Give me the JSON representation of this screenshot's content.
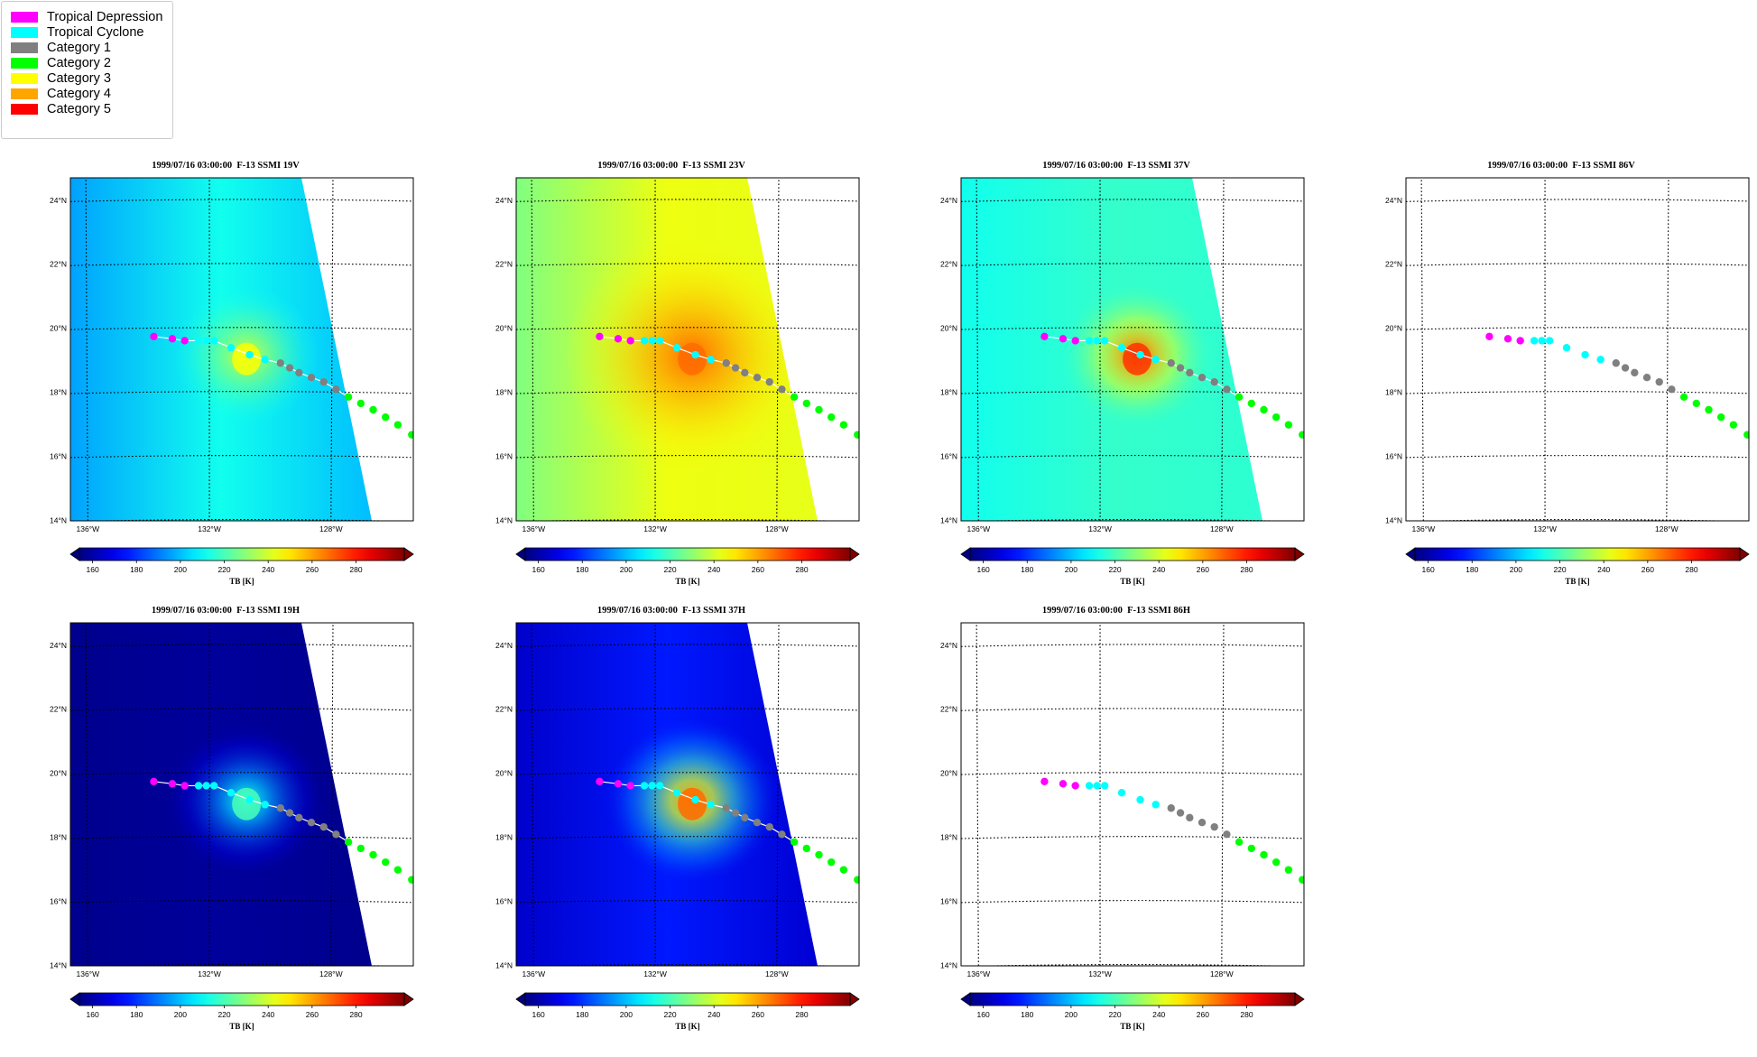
{
  "legend": {
    "items": [
      {
        "label": "Tropical Depression",
        "color": "#ff00ff"
      },
      {
        "label": "Tropical Cyclone",
        "color": "#00ffff"
      },
      {
        "label": "Category 1",
        "color": "#808080"
      },
      {
        "label": "Category 2",
        "color": "#00ff00"
      },
      {
        "label": "Category 3",
        "color": "#ffff00"
      },
      {
        "label": "Category 4",
        "color": "#ffa500"
      },
      {
        "label": "Category 5",
        "color": "#ff0000"
      }
    ]
  },
  "panels": [
    {
      "title": "1999/07/16 03:00:00  F-13 SSMI 19V",
      "bg": 212,
      "edge": 200,
      "west": 196,
      "core": 240,
      "coreR": 0.35,
      "swath": true
    },
    {
      "title": "1999/07/16 03:00:00  F-13 SSMI 23V",
      "bg": 244,
      "edge": 243,
      "west": 228,
      "core": 268,
      "coreR": 0.9,
      "swath": true
    },
    {
      "title": "1999/07/16 03:00:00  F-13 SSMI 37V",
      "bg": 217,
      "edge": 216,
      "west": 212,
      "core": 270,
      "coreR": 0.4,
      "swath": true
    },
    {
      "title": "1999/07/16 03:00:00  F-13 SSMI 86V",
      "swath": false
    },
    {
      "title": "1999/07/16 03:00:00  F-13 SSMI 19H",
      "bg": 158,
      "edge": 156,
      "west": 156,
      "core": 214,
      "coreR": 0.45,
      "swath": true
    },
    {
      "title": "1999/07/16 03:00:00  F-13 SSMI 37H",
      "bg": 176,
      "edge": 166,
      "west": 165,
      "core": 262,
      "coreR": 0.5,
      "swath": true
    },
    {
      "title": "1999/07/16 03:00:00  F-13 SSMI 86H",
      "swath": false
    }
  ],
  "map": {
    "lon_ticks": [
      "136°W",
      "132°W",
      "128°W"
    ],
    "lat_ticks": [
      "14°N",
      "16°N",
      "18°N",
      "20°N",
      "22°N",
      "24°N"
    ],
    "lon_values": [
      -136,
      -132,
      -128
    ],
    "lat_values": [
      14,
      16,
      18,
      20,
      22,
      24
    ],
    "extent": {
      "lon_min": -136.5,
      "lon_max": -125.4,
      "lat_min": 13.98,
      "lat_max": 24.7
    }
  },
  "colorbar": {
    "label": "TB [K]",
    "ticks": [
      "160",
      "180",
      "200",
      "220",
      "240",
      "260",
      "280"
    ],
    "tick_values": [
      160,
      180,
      200,
      220,
      240,
      260,
      280
    ],
    "min": 154,
    "max": 302
  },
  "track": [
    {
      "lon": -133.8,
      "lat": 19.74,
      "cat": "Tropical Depression"
    },
    {
      "lon": -133.2,
      "lat": 19.67,
      "cat": "Tropical Depression"
    },
    {
      "lon": -132.8,
      "lat": 19.61,
      "cat": "Tropical Depression"
    },
    {
      "lon": -132.35,
      "lat": 19.61,
      "cat": "Tropical Cyclone"
    },
    {
      "lon": -132.1,
      "lat": 19.61,
      "cat": "Tropical Cyclone"
    },
    {
      "lon": -131.85,
      "lat": 19.61,
      "cat": "Tropical Cyclone"
    },
    {
      "lon": -131.3,
      "lat": 19.39,
      "cat": "Tropical Cyclone"
    },
    {
      "lon": -130.7,
      "lat": 19.17,
      "cat": "Tropical Cyclone"
    },
    {
      "lon": -130.2,
      "lat": 19.02,
      "cat": "Tropical Cyclone"
    },
    {
      "lon": -129.7,
      "lat": 18.91,
      "cat": "Category 1"
    },
    {
      "lon": -129.4,
      "lat": 18.76,
      "cat": "Category 1"
    },
    {
      "lon": -129.1,
      "lat": 18.61,
      "cat": "Category 1"
    },
    {
      "lon": -128.7,
      "lat": 18.46,
      "cat": "Category 1"
    },
    {
      "lon": -128.3,
      "lat": 18.32,
      "cat": "Category 1"
    },
    {
      "lon": -127.9,
      "lat": 18.09,
      "cat": "Category 1"
    },
    {
      "lon": -127.5,
      "lat": 17.85,
      "cat": "Category 2"
    },
    {
      "lon": -127.1,
      "lat": 17.65,
      "cat": "Category 2"
    },
    {
      "lon": -126.7,
      "lat": 17.45,
      "cat": "Category 2"
    },
    {
      "lon": -126.3,
      "lat": 17.22,
      "cat": "Category 2"
    },
    {
      "lon": -125.9,
      "lat": 16.98,
      "cat": "Category 2"
    },
    {
      "lon": -125.45,
      "lat": 16.67,
      "cat": "Category 2"
    }
  ]
}
